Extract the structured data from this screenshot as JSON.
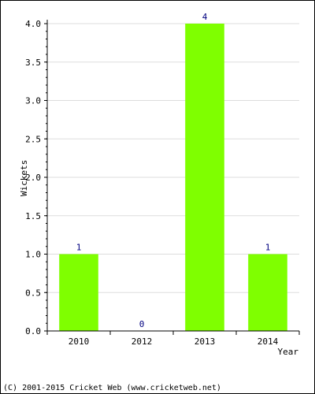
{
  "chart_data": {
    "type": "bar",
    "categories": [
      "2010",
      "2012",
      "2013",
      "2014"
    ],
    "values": [
      1,
      0,
      4,
      1
    ],
    "data_labels": [
      "1",
      "0",
      "4",
      "1"
    ],
    "xlabel": "Year",
    "ylabel": "Wickets",
    "ylim": [
      0,
      4
    ],
    "y_ticks": [
      "0.0",
      "0.5",
      "1.0",
      "1.5",
      "2.0",
      "2.5",
      "3.0",
      "3.5",
      "4.0"
    ],
    "grid": true,
    "bar_color": "#7fff00",
    "label_color": "#000080"
  },
  "footer": {
    "copyright": "(C) 2001-2015 Cricket Web (www.cricketweb.net)"
  }
}
